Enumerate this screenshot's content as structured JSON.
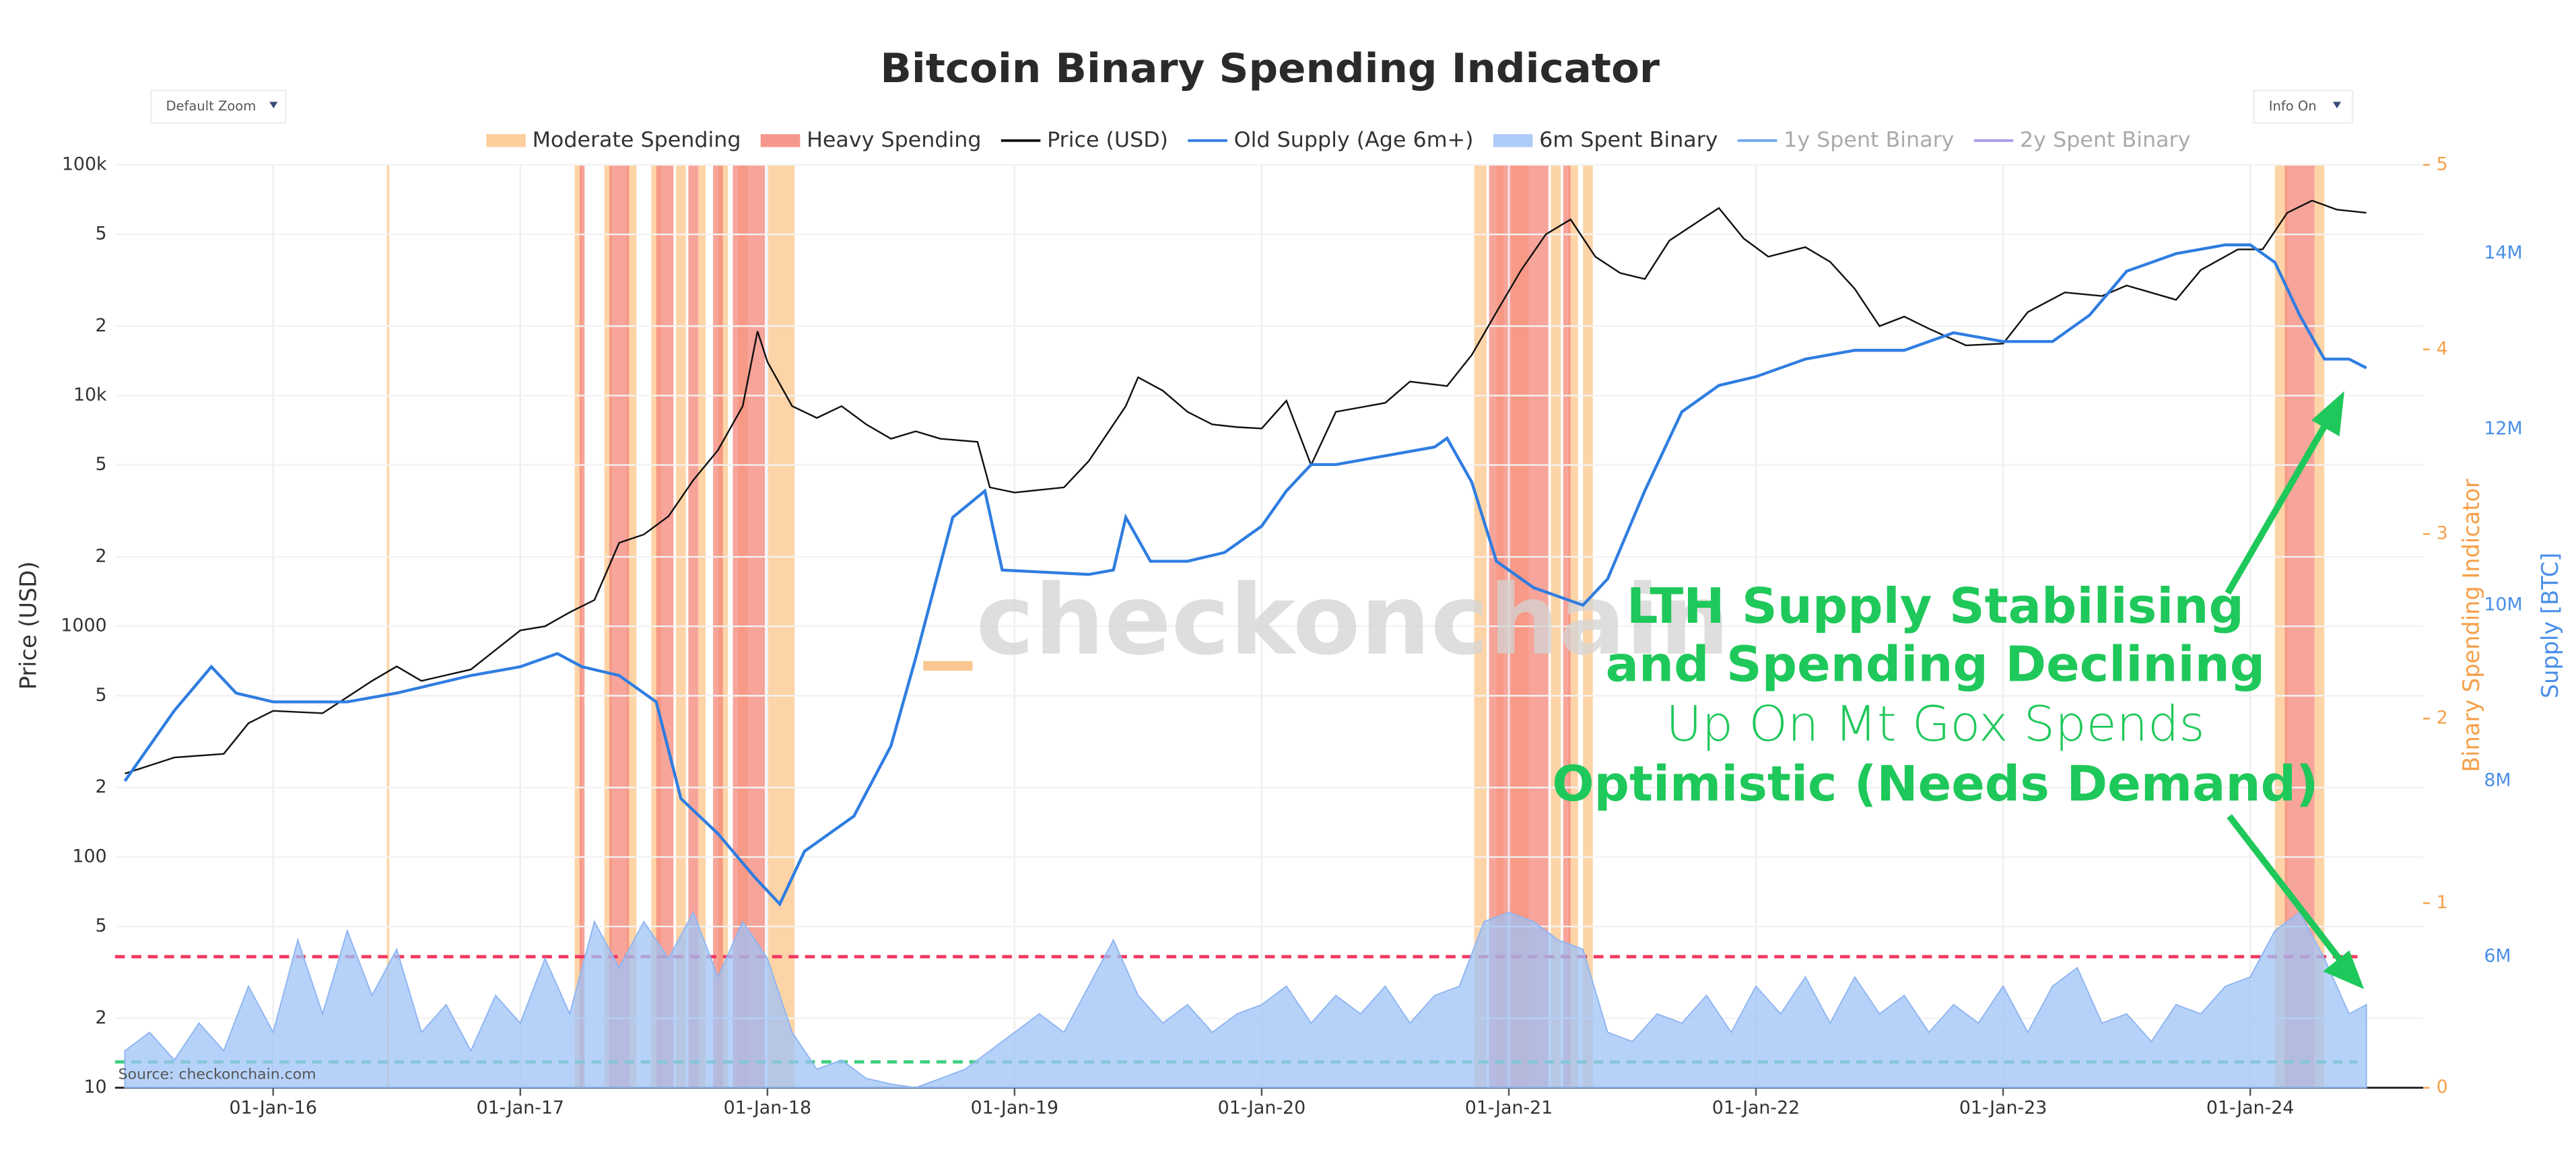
{
  "chart_data": {
    "type": "line",
    "title": "Bitcoin Binary Spending Indicator",
    "controls": [
      "Default Zoom",
      "Info On"
    ],
    "watermark": "checkonchain",
    "source": "Source: checkonchain.com",
    "annotations": [
      "LTH Supply Stabilising",
      "and Spending Declining",
      "Up On Mt Gox Spends",
      "Optimistic (Needs Demand)"
    ],
    "annotation_color": "#1fc85a",
    "ylabel": "Price (USD)",
    "y2label": "Binary Spending Indicator",
    "y3label": "Supply [BTC]",
    "xlim": [
      2015.36,
      2024.7
    ],
    "xticks": [
      {
        "value": 2016,
        "label": "01-Jan-16"
      },
      {
        "value": 2017,
        "label": "01-Jan-17"
      },
      {
        "value": 2018,
        "label": "01-Jan-18"
      },
      {
        "value": 2019,
        "label": "01-Jan-19"
      },
      {
        "value": 2020,
        "label": "01-Jan-20"
      },
      {
        "value": 2021,
        "label": "01-Jan-21"
      },
      {
        "value": 2022,
        "label": "01-Jan-22"
      },
      {
        "value": 2023,
        "label": "01-Jan-23"
      },
      {
        "value": 2024,
        "label": "01-Jan-24"
      }
    ],
    "log_y": true,
    "ylim": [
      10,
      100000
    ],
    "yticks": [
      10,
      {
        "value": 20,
        "label": "2"
      },
      {
        "value": 50,
        "label": "5"
      },
      100,
      {
        "value": 200,
        "label": "2"
      },
      {
        "value": 500,
        "label": "5"
      },
      1000,
      {
        "value": 2000,
        "label": "2"
      },
      {
        "value": 5000,
        "label": "5"
      },
      {
        "value": 10000,
        "label": "10k"
      },
      {
        "value": 20000,
        "label": "2"
      },
      {
        "value": 50000,
        "label": "5"
      },
      {
        "value": 100000,
        "label": "100k"
      }
    ],
    "y2lim": [
      0,
      5
    ],
    "y2ticks": [
      0,
      1,
      2,
      3,
      4,
      5
    ],
    "y2color": "#f5a04a",
    "y3lim": [
      4510000,
      15010000
    ],
    "y3ticks": [
      {
        "value": 6000000,
        "label": "6M"
      },
      {
        "value": 8000000,
        "label": "8M"
      },
      {
        "value": 10000000,
        "label": "10M"
      },
      {
        "value": 12000000,
        "label": "12M"
      },
      {
        "value": 14000000,
        "label": "14M"
      }
    ],
    "y3color": "#4a8fe7",
    "grid": true,
    "reference_lines": [
      {
        "value": 0.71,
        "color": "#f0385f",
        "axis": "y2"
      },
      {
        "value": 0.14,
        "color": "#3ccf7f",
        "axis": "y2"
      }
    ],
    "series": [
      {
        "name": "Moderate Spending",
        "type": "band",
        "color": "#fcc58a",
        "ranges": [
          [
            2016.46,
            2016.47
          ],
          [
            2017.22,
            2017.25
          ],
          [
            2017.34,
            2017.37
          ],
          [
            2017.43,
            2017.47
          ],
          [
            2017.53,
            2017.57
          ],
          [
            2017.63,
            2017.67
          ],
          [
            2017.72,
            2017.75
          ],
          [
            2017.8,
            2017.84
          ],
          [
            2017.88,
            2017.92
          ],
          [
            2018.0,
            2018.11
          ],
          [
            2020.86,
            2020.91
          ],
          [
            2020.95,
            2020.98
          ],
          [
            2021.01,
            2021.08
          ],
          [
            2021.17,
            2021.21
          ],
          [
            2021.24,
            2021.28
          ],
          [
            2021.3,
            2021.34
          ],
          [
            2024.1,
            2024.15
          ],
          [
            2024.26,
            2024.3
          ]
        ]
      },
      {
        "name": "Heavy Spending",
        "type": "band",
        "color": "#f4857a",
        "ranges": [
          [
            2017.24,
            2017.26
          ],
          [
            2017.36,
            2017.44
          ],
          [
            2017.55,
            2017.62
          ],
          [
            2017.68,
            2017.72
          ],
          [
            2017.78,
            2017.82
          ],
          [
            2017.86,
            2017.99
          ],
          [
            2020.92,
            2021.16
          ],
          [
            2021.22,
            2021.25
          ],
          [
            2024.14,
            2024.26
          ]
        ]
      },
      {
        "name": "Price (USD)",
        "type": "line",
        "axis": "y",
        "color": "#111111",
        "x": [
          2015.4,
          2015.6,
          2015.8,
          2015.9,
          2016.0,
          2016.2,
          2016.4,
          2016.5,
          2016.6,
          2016.8,
          2017.0,
          2017.1,
          2017.2,
          2017.3,
          2017.4,
          2017.5,
          2017.6,
          2017.7,
          2017.8,
          2017.9,
          2017.96,
          2018.0,
          2018.1,
          2018.2,
          2018.3,
          2018.4,
          2018.5,
          2018.6,
          2018.7,
          2018.85,
          2018.9,
          2019.0,
          2019.2,
          2019.3,
          2019.45,
          2019.5,
          2019.6,
          2019.7,
          2019.8,
          2019.9,
          2020.0,
          2020.1,
          2020.2,
          2020.3,
          2020.5,
          2020.6,
          2020.75,
          2020.85,
          2020.95,
          2021.05,
          2021.15,
          2021.25,
          2021.35,
          2021.45,
          2021.55,
          2021.65,
          2021.8,
          2021.85,
          2021.95,
          2022.05,
          2022.2,
          2022.3,
          2022.4,
          2022.5,
          2022.6,
          2022.7,
          2022.85,
          2023.0,
          2023.1,
          2023.25,
          2023.4,
          2023.5,
          2023.7,
          2023.8,
          2023.95,
          2024.05,
          2024.15,
          2024.25,
          2024.35,
          2024.47
        ],
        "values": [
          230,
          270,
          280,
          380,
          430,
          420,
          580,
          670,
          580,
          650,
          960,
          1000,
          1150,
          1300,
          2300,
          2500,
          3000,
          4300,
          5800,
          9000,
          19000,
          14000,
          9000,
          8000,
          9000,
          7500,
          6500,
          7000,
          6500,
          6300,
          4000,
          3800,
          4000,
          5200,
          9000,
          12000,
          10500,
          8500,
          7500,
          7300,
          7200,
          9500,
          5000,
          8500,
          9300,
          11500,
          11000,
          15000,
          23000,
          35000,
          50000,
          58000,
          40000,
          34000,
          32000,
          47000,
          60000,
          65000,
          48000,
          40000,
          44000,
          38000,
          29000,
          20000,
          22000,
          19500,
          16500,
          16800,
          23000,
          28000,
          27000,
          30000,
          26000,
          35000,
          43000,
          43000,
          62000,
          70000,
          64000,
          62000
        ]
      },
      {
        "name": "Old Supply (Age 6m+)",
        "type": "line",
        "axis": "y3",
        "color": "#2f7de1",
        "x": [
          2015.4,
          2015.6,
          2015.75,
          2015.85,
          2016.0,
          2016.3,
          2016.5,
          2016.8,
          2017.0,
          2017.15,
          2017.25,
          2017.4,
          2017.55,
          2017.65,
          2017.8,
          2017.95,
          2018.05,
          2018.15,
          2018.35,
          2018.5,
          2018.6,
          2018.75,
          2018.88,
          2018.95,
          2019.3,
          2019.4,
          2019.45,
          2019.55,
          2019.7,
          2019.85,
          2020.0,
          2020.1,
          2020.2,
          2020.3,
          2020.5,
          2020.7,
          2020.75,
          2020.85,
          2020.95,
          2021.1,
          2021.3,
          2021.4,
          2021.55,
          2021.7,
          2021.85,
          2022.0,
          2022.2,
          2022.4,
          2022.6,
          2022.8,
          2023.0,
          2023.2,
          2023.35,
          2023.5,
          2023.7,
          2023.9,
          2024.0,
          2024.1,
          2024.2,
          2024.3,
          2024.4,
          2024.47
        ],
        "values": [
          8000000,
          8800000,
          9300000,
          9000000,
          8900000,
          8900000,
          9000000,
          9200000,
          9300000,
          9450000,
          9300000,
          9200000,
          8900000,
          7800000,
          7400000,
          6900000,
          6600000,
          7200000,
          7600000,
          8400000,
          9400000,
          11000000,
          11300000,
          10400000,
          10350000,
          10400000,
          11000000,
          10500000,
          10500000,
          10600000,
          10900000,
          11300000,
          11600000,
          11600000,
          11700000,
          11800000,
          11900000,
          11400000,
          10500000,
          10200000,
          10000000,
          10300000,
          11300000,
          12200000,
          12500000,
          12600000,
          12800000,
          12900000,
          12900000,
          13100000,
          13000000,
          13000000,
          13300000,
          13800000,
          14000000,
          14100000,
          14100000,
          13900000,
          13300000,
          12800000,
          12800000,
          12700000
        ]
      },
      {
        "name": "6m Spent Binary",
        "type": "area",
        "axis": "y2",
        "color": "#9fc3f7",
        "x": [
          2015.4,
          2015.5,
          2015.6,
          2015.7,
          2015.8,
          2015.9,
          2016.0,
          2016.1,
          2016.2,
          2016.3,
          2016.4,
          2016.5,
          2016.6,
          2016.7,
          2016.8,
          2016.9,
          2017.0,
          2017.1,
          2017.2,
          2017.3,
          2017.4,
          2017.5,
          2017.6,
          2017.7,
          2017.8,
          2017.9,
          2018.0,
          2018.1,
          2018.2,
          2018.3,
          2018.4,
          2018.5,
          2018.6,
          2018.7,
          2018.8,
          2018.9,
          2019.0,
          2019.1,
          2019.2,
          2019.3,
          2019.4,
          2019.5,
          2019.6,
          2019.7,
          2019.8,
          2019.9,
          2020.0,
          2020.1,
          2020.2,
          2020.3,
          2020.4,
          2020.5,
          2020.6,
          2020.7,
          2020.8,
          2020.9,
          2021.0,
          2021.1,
          2021.2,
          2021.3,
          2021.4,
          2021.5,
          2021.6,
          2021.7,
          2021.8,
          2021.9,
          2022.0,
          2022.1,
          2022.2,
          2022.3,
          2022.4,
          2022.5,
          2022.6,
          2022.7,
          2022.8,
          2022.9,
          2023.0,
          2023.1,
          2023.2,
          2023.3,
          2023.4,
          2023.5,
          2023.6,
          2023.7,
          2023.8,
          2023.9,
          2024.0,
          2024.1,
          2024.2,
          2024.3,
          2024.4,
          2024.47
        ],
        "values": [
          0.2,
          0.3,
          0.15,
          0.35,
          0.2,
          0.55,
          0.3,
          0.8,
          0.4,
          0.85,
          0.5,
          0.75,
          0.3,
          0.45,
          0.2,
          0.5,
          0.35,
          0.7,
          0.4,
          0.9,
          0.65,
          0.9,
          0.7,
          0.95,
          0.6,
          0.9,
          0.7,
          0.3,
          0.1,
          0.15,
          0.05,
          0.02,
          0.0,
          0.05,
          0.1,
          0.2,
          0.3,
          0.4,
          0.3,
          0.55,
          0.8,
          0.5,
          0.35,
          0.45,
          0.3,
          0.4,
          0.45,
          0.55,
          0.35,
          0.5,
          0.4,
          0.55,
          0.35,
          0.5,
          0.55,
          0.9,
          0.95,
          0.9,
          0.8,
          0.75,
          0.3,
          0.25,
          0.4,
          0.35,
          0.5,
          0.3,
          0.55,
          0.4,
          0.6,
          0.35,
          0.6,
          0.4,
          0.5,
          0.3,
          0.45,
          0.35,
          0.55,
          0.3,
          0.55,
          0.65,
          0.35,
          0.4,
          0.25,
          0.45,
          0.4,
          0.55,
          0.6,
          0.85,
          0.95,
          0.7,
          0.4,
          0.45
        ]
      },
      {
        "name": "1y Spent Binary",
        "type": "line",
        "axis": "y2",
        "color": "#6fa8f0",
        "visible": false,
        "x": [],
        "values": []
      },
      {
        "name": "2y Spent Binary",
        "type": "line",
        "axis": "y2",
        "color": "#a99cf0",
        "visible": false,
        "x": [],
        "values": []
      }
    ]
  }
}
